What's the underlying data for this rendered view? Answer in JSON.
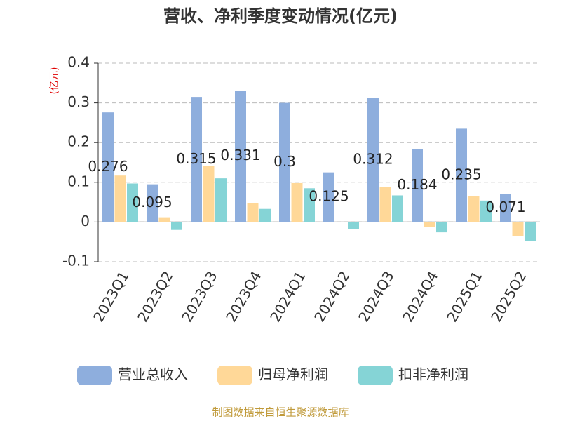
{
  "chart_data": {
    "type": "bar",
    "title": "营收、净利季度变动情况(亿元)",
    "y_label": "(亿元)",
    "source": "制图数据来自恒生聚源数据库",
    "categories": [
      "2023Q1",
      "2023Q2",
      "2023Q3",
      "2023Q4",
      "2024Q1",
      "2024Q2",
      "2024Q3",
      "2024Q4",
      "2025Q1",
      "2025Q2"
    ],
    "series": [
      {
        "name": "营业总收入",
        "color": "#8eaedd",
        "values": [
          0.276,
          0.095,
          0.315,
          0.331,
          0.3,
          0.125,
          0.312,
          0.184,
          0.235,
          0.071
        ],
        "show_labels": true
      },
      {
        "name": "归母净利润",
        "color": "#ffd898",
        "values": [
          0.117,
          0.012,
          0.142,
          0.047,
          0.098,
          0,
          0.089,
          -0.013,
          0.065,
          -0.035
        ]
      },
      {
        "name": "扣非净利润",
        "color": "#85d4d6",
        "values": [
          0.097,
          -0.02,
          0.11,
          0.033,
          0.085,
          -0.018,
          0.067,
          -0.026,
          0.054,
          -0.048
        ]
      }
    ],
    "ylim": [
      -0.1,
      0.4
    ],
    "yticks": [
      -0.1,
      0,
      0.1,
      0.2,
      0.3,
      0.4
    ],
    "grid": true,
    "legend": "bottom"
  }
}
